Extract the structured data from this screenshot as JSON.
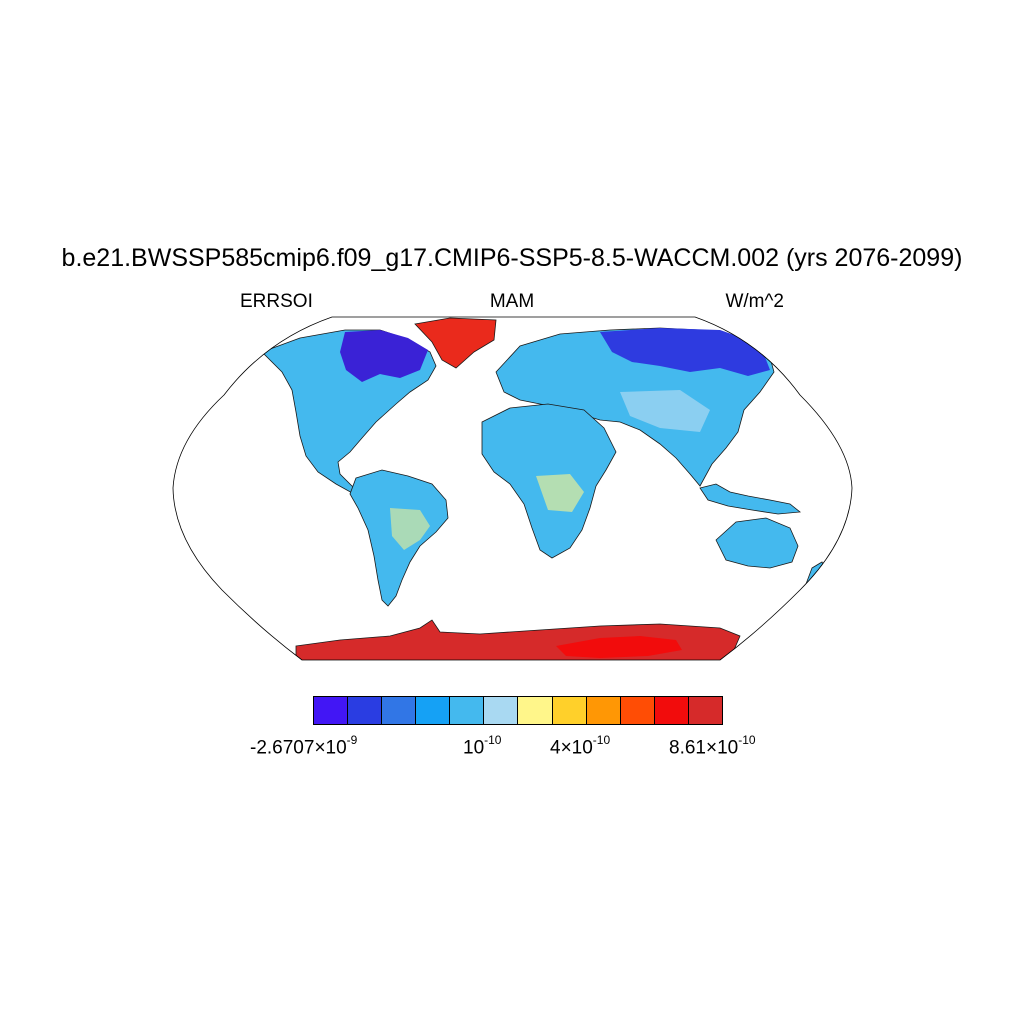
{
  "title": "b.e21.BWSSP585cmip6.f09_g17.CMIP6-SSP5-8.5-WACCM.002 (yrs 2076-2099)",
  "left_label": "ERRSOI",
  "center_label": "MAM",
  "right_label": "W/m^2",
  "map": {
    "projection": "Robinson",
    "colors": {
      "land_default": "#44b9ee",
      "greenland": "#ea2a1c",
      "antarctica": "#d62a2a",
      "antarctica_core": "#f20c0c",
      "canada_arctic": "#3a22d6",
      "siberia": "#2e3be0",
      "tundra": "#2f79e0",
      "tropics_light": "#a9d9f2",
      "dry_yellow": "#fff68a",
      "coast": "#1a1a1a"
    }
  },
  "colorbar": {
    "colors": [
      "#4216f5",
      "#2a3de2",
      "#3176e6",
      "#15a1f5",
      "#44b9ee",
      "#a9d9f2",
      "#fff68a",
      "#ffd02a",
      "#ff9705",
      "#ff4d05",
      "#f20c0c",
      "#d62a2a"
    ],
    "labels": [
      {
        "mantissa": "-2.6707×10",
        "exponent": "-9"
      },
      {
        "mantissa": "10",
        "exponent": "-10"
      },
      {
        "mantissa": "4×10",
        "exponent": "-10"
      },
      {
        "mantissa": "8.61×10",
        "exponent": "-10"
      }
    ]
  }
}
